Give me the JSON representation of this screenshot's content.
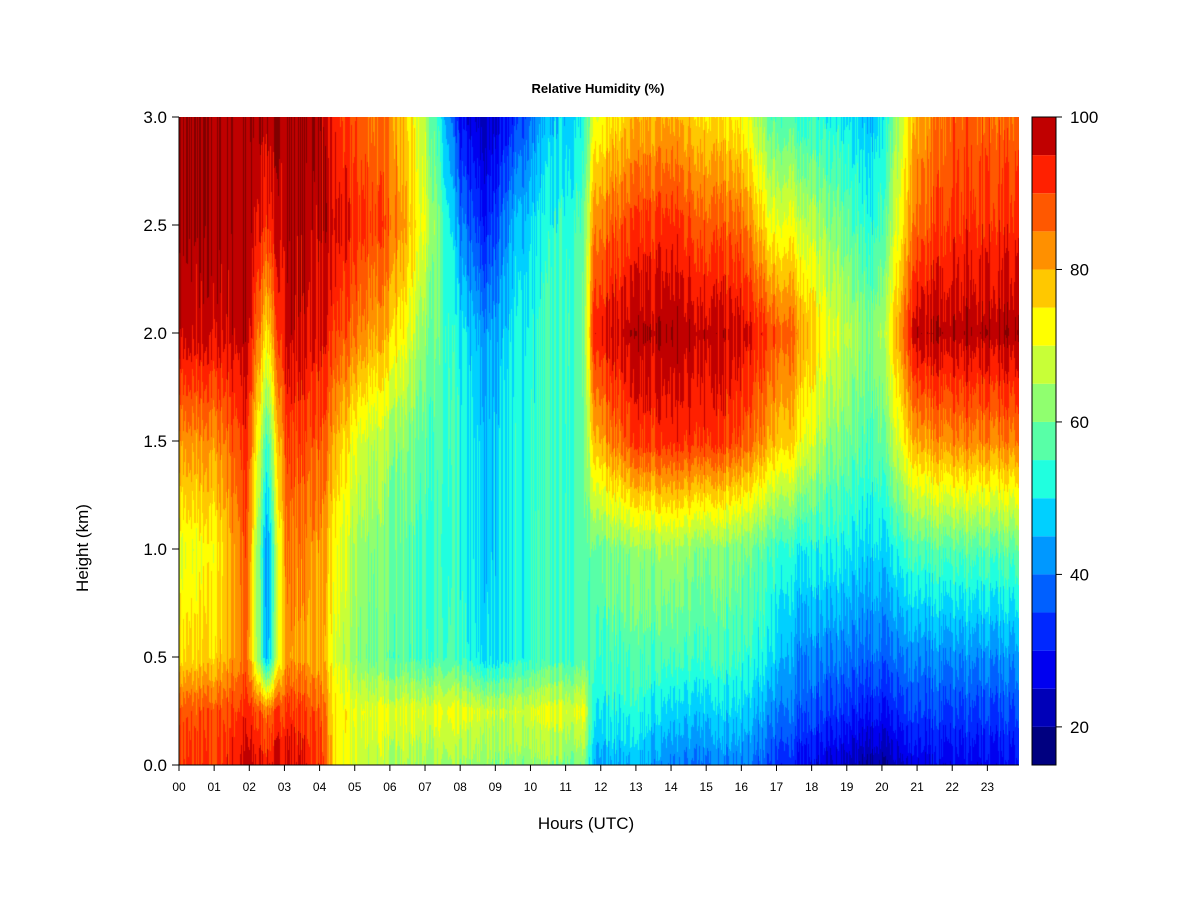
{
  "chart_data": {
    "type": "heatmap",
    "title": "Relative Humidity (%)",
    "xlabel": "Hours (UTC)",
    "ylabel": "Height (km)",
    "x_ticks": [
      "00",
      "01",
      "02",
      "03",
      "04",
      "05",
      "06",
      "07",
      "08",
      "09",
      "10",
      "11",
      "12",
      "13",
      "14",
      "15",
      "16",
      "17",
      "18",
      "19",
      "20",
      "21",
      "22",
      "23"
    ],
    "y_ticks": [
      "0.0",
      "0.5",
      "1.0",
      "1.5",
      "2.0",
      "2.5",
      "3.0"
    ],
    "xlim": [
      0,
      23.9
    ],
    "ylim": [
      0,
      3.0
    ],
    "colorbar": {
      "ticks": [
        "20",
        "40",
        "60",
        "80",
        "100"
      ],
      "range": [
        15,
        100
      ],
      "levels": [
        15,
        20,
        25,
        30,
        35,
        40,
        45,
        50,
        55,
        60,
        65,
        70,
        75,
        80,
        85,
        90,
        95,
        100
      ],
      "colors": [
        "#000080",
        "#0000b8",
        "#0000f0",
        "#0028ff",
        "#0060ff",
        "#0098ff",
        "#00d0ff",
        "#20ffdf",
        "#58ffa7",
        "#90ff6f",
        "#c8ff37",
        "#ffff00",
        "#ffc800",
        "#ff9000",
        "#ff5800",
        "#ff2000",
        "#c00000",
        "#800000"
      ]
    },
    "grid": false,
    "legend": "colorbar-right",
    "profiles_hours": [
      0,
      1,
      1.9,
      2.5,
      3.0,
      4.0,
      4.4,
      5,
      6,
      7,
      8,
      8.7,
      9.5,
      10.5,
      11.5,
      11.8,
      13,
      14,
      15,
      16,
      16.8,
      17.5,
      18.5,
      19.8,
      21,
      22,
      23.9
    ],
    "profiles_heights_km": [
      0,
      0.25,
      0.5,
      1.0,
      1.5,
      2.0,
      2.5,
      3.0
    ],
    "rh_percent": [
      [
        90,
        88,
        75,
        70,
        82,
        97,
        99,
        99
      ],
      [
        90,
        88,
        76,
        72,
        82,
        96,
        99,
        99
      ],
      [
        97,
        92,
        86,
        88,
        92,
        98,
        99,
        99
      ],
      [
        94,
        86,
        45,
        42,
        55,
        75,
        92,
        99
      ],
      [
        97,
        92,
        82,
        85,
        90,
        98,
        99,
        99
      ],
      [
        92,
        88,
        80,
        82,
        88,
        95,
        98,
        99
      ],
      [
        75,
        74,
        70,
        72,
        80,
        90,
        96,
        92
      ],
      [
        68,
        70,
        62,
        64,
        70,
        85,
        92,
        88
      ],
      [
        66,
        70,
        58,
        60,
        64,
        78,
        88,
        84
      ],
      [
        64,
        70,
        56,
        55,
        58,
        62,
        70,
        66
      ],
      [
        62,
        70,
        54,
        52,
        52,
        50,
        40,
        28
      ],
      [
        62,
        68,
        48,
        46,
        46,
        42,
        30,
        22
      ],
      [
        62,
        68,
        52,
        52,
        52,
        50,
        45,
        32
      ],
      [
        62,
        70,
        55,
        55,
        54,
        55,
        52,
        46
      ],
      [
        60,
        70,
        56,
        56,
        56,
        58,
        56,
        50
      ],
      [
        45,
        52,
        56,
        60,
        80,
        95,
        85,
        72
      ],
      [
        45,
        52,
        56,
        62,
        90,
        98,
        90,
        78
      ],
      [
        40,
        48,
        56,
        64,
        92,
        99,
        92,
        80
      ],
      [
        40,
        48,
        56,
        62,
        92,
        98,
        88,
        76
      ],
      [
        40,
        48,
        54,
        60,
        88,
        96,
        86,
        72
      ],
      [
        35,
        42,
        50,
        56,
        80,
        90,
        72,
        58
      ],
      [
        30,
        38,
        42,
        52,
        75,
        85,
        70,
        55
      ],
      [
        25,
        34,
        40,
        52,
        62,
        70,
        62,
        52
      ],
      [
        20,
        30,
        38,
        48,
        56,
        60,
        52,
        46
      ],
      [
        26,
        34,
        40,
        56,
        80,
        98,
        86,
        80
      ],
      [
        28,
        35,
        42,
        58,
        84,
        99,
        92,
        88
      ],
      [
        28,
        35,
        42,
        58,
        84,
        99,
        92,
        86
      ]
    ]
  }
}
